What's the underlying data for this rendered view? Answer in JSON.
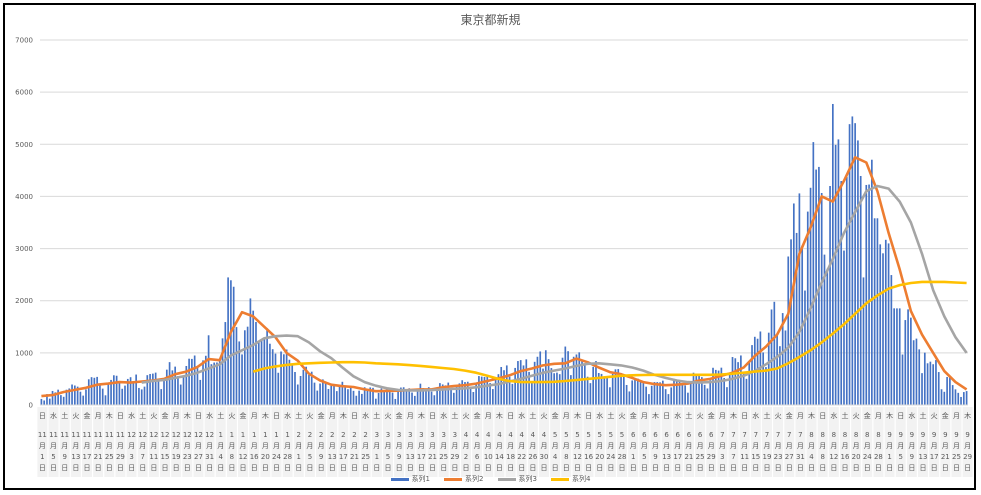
{
  "chart_data": {
    "type": "bar+line",
    "title": "東京都新規",
    "ylim": [
      0,
      7000
    ],
    "yticks": [
      0,
      1000,
      2000,
      3000,
      4000,
      5000,
      6000,
      7000
    ],
    "grid": true,
    "legend_position": "bottom",
    "x_start": "2020-11-01",
    "x_end": "2021-09-29",
    "weekday_cycle": [
      "日",
      "水",
      "土",
      "火",
      "金",
      "月",
      "木"
    ],
    "labels": [
      {
        "m": "11",
        "d": "1"
      },
      {
        "m": "11",
        "d": "5"
      },
      {
        "m": "11",
        "d": "9"
      },
      {
        "m": "11",
        "d": "13"
      },
      {
        "m": "11",
        "d": "17"
      },
      {
        "m": "11",
        "d": "21"
      },
      {
        "m": "11",
        "d": "25"
      },
      {
        "m": "11",
        "d": "29"
      },
      {
        "m": "12",
        "d": "3"
      },
      {
        "m": "12",
        "d": "7"
      },
      {
        "m": "12",
        "d": "11"
      },
      {
        "m": "12",
        "d": "15"
      },
      {
        "m": "12",
        "d": "19"
      },
      {
        "m": "12",
        "d": "23"
      },
      {
        "m": "12",
        "d": "27"
      },
      {
        "m": "12",
        "d": "31"
      },
      {
        "m": "1",
        "d": "4"
      },
      {
        "m": "1",
        "d": "8"
      },
      {
        "m": "1",
        "d": "12"
      },
      {
        "m": "1",
        "d": "16"
      },
      {
        "m": "1",
        "d": "20"
      },
      {
        "m": "1",
        "d": "24"
      },
      {
        "m": "1",
        "d": "28"
      },
      {
        "m": "2",
        "d": "1"
      },
      {
        "m": "2",
        "d": "5"
      },
      {
        "m": "2",
        "d": "9"
      },
      {
        "m": "2",
        "d": "13"
      },
      {
        "m": "2",
        "d": "17"
      },
      {
        "m": "2",
        "d": "21"
      },
      {
        "m": "2",
        "d": "25"
      },
      {
        "m": "3",
        "d": "1"
      },
      {
        "m": "3",
        "d": "5"
      },
      {
        "m": "3",
        "d": "9"
      },
      {
        "m": "3",
        "d": "13"
      },
      {
        "m": "3",
        "d": "17"
      },
      {
        "m": "3",
        "d": "21"
      },
      {
        "m": "3",
        "d": "25"
      },
      {
        "m": "3",
        "d": "29"
      },
      {
        "m": "4",
        "d": "2"
      },
      {
        "m": "4",
        "d": "6"
      },
      {
        "m": "4",
        "d": "10"
      },
      {
        "m": "4",
        "d": "14"
      },
      {
        "m": "4",
        "d": "18"
      },
      {
        "m": "4",
        "d": "22"
      },
      {
        "m": "4",
        "d": "26"
      },
      {
        "m": "4",
        "d": "30"
      },
      {
        "m": "5",
        "d": "4"
      },
      {
        "m": "5",
        "d": "8"
      },
      {
        "m": "5",
        "d": "12"
      },
      {
        "m": "5",
        "d": "16"
      },
      {
        "m": "5",
        "d": "20"
      },
      {
        "m": "5",
        "d": "24"
      },
      {
        "m": "5",
        "d": "28"
      },
      {
        "m": "6",
        "d": "1"
      },
      {
        "m": "6",
        "d": "5"
      },
      {
        "m": "6",
        "d": "9"
      },
      {
        "m": "6",
        "d": "13"
      },
      {
        "m": "6",
        "d": "17"
      },
      {
        "m": "6",
        "d": "21"
      },
      {
        "m": "6",
        "d": "25"
      },
      {
        "m": "6",
        "d": "29"
      },
      {
        "m": "7",
        "d": "3"
      },
      {
        "m": "7",
        "d": "7"
      },
      {
        "m": "7",
        "d": "11"
      },
      {
        "m": "7",
        "d": "15"
      },
      {
        "m": "7",
        "d": "19"
      },
      {
        "m": "7",
        "d": "23"
      },
      {
        "m": "7",
        "d": "27"
      },
      {
        "m": "7",
        "d": "31"
      },
      {
        "m": "8",
        "d": "4"
      },
      {
        "m": "8",
        "d": "8"
      },
      {
        "m": "8",
        "d": "12"
      },
      {
        "m": "8",
        "d": "16"
      },
      {
        "m": "8",
        "d": "20"
      },
      {
        "m": "8",
        "d": "24"
      },
      {
        "m": "8",
        "d": "28"
      },
      {
        "m": "9",
        "d": "1"
      },
      {
        "m": "9",
        "d": "5"
      },
      {
        "m": "9",
        "d": "9"
      },
      {
        "m": "9",
        "d": "13"
      },
      {
        "m": "9",
        "d": "17"
      },
      {
        "m": "9",
        "d": "21"
      },
      {
        "m": "9",
        "d": "25"
      },
      {
        "m": "9",
        "d": "29"
      }
    ],
    "month_suffix": "月",
    "day_suffix": "日",
    "series1": {
      "name": "系列1",
      "type": "bar",
      "color": "#4472c4",
      "resolution": "daily",
      "values": [
        116,
        87,
        209,
        122,
        269,
        242,
        294,
        189,
        157,
        293,
        317,
        393,
        374,
        352,
        255,
        180,
        298,
        493,
        534,
        522,
        539,
        391,
        314,
        186,
        401,
        481,
        570,
        561,
        418,
        311,
        372,
        500,
        533,
        449,
        584,
        327,
        299,
        352,
        572,
        595,
        602,
        621,
        480,
        305,
        460,
        678,
        822,
        664,
        736,
        556,
        392,
        563,
        748,
        888,
        884,
        949,
        708,
        481,
        856,
        944,
        1337,
        783,
        814,
        816,
        884,
        1278,
        1591,
        2447,
        2392,
        2268,
        1494,
        1219,
        970,
        1433,
        1502,
        2044,
        1809,
        1592,
        1204,
        1240,
        1274,
        1471,
        1175,
        1070,
        986,
        618,
        1026,
        973,
        1064,
        868,
        769,
        633,
        393,
        556,
        676,
        734,
        577,
        639,
        429,
        276,
        412,
        491,
        434,
        307,
        369,
        371,
        266,
        378,
        445,
        353,
        303,
        327,
        272,
        178,
        275,
        213,
        340,
        270,
        337,
        329,
        121,
        232,
        316,
        279,
        301,
        293,
        237,
        116,
        290,
        335,
        340,
        304,
        320,
        239,
        175,
        300,
        409,
        323,
        303,
        342,
        256,
        187,
        337,
        420,
        394,
        376,
        430,
        313,
        234,
        364,
        414,
        475,
        440,
        446,
        355,
        249,
        399,
        555,
        545,
        537,
        570,
        421,
        306,
        510,
        591,
        729,
        667,
        759,
        543,
        405,
        711,
        843,
        861,
        759,
        876,
        635,
        425,
        828,
        925,
        1027,
        698,
        1050,
        879,
        708,
        609,
        621,
        591,
        907,
        1121,
        1032,
        573,
        925,
        969,
        1010,
        854,
        772,
        542,
        419,
        732,
        843,
        614,
        596,
        535,
        521,
        340,
        597,
        684,
        689,
        614,
        539,
        384,
        260,
        471,
        487,
        508,
        472,
        436,
        351,
        209,
        369,
        440,
        439,
        435,
        467,
        304,
        209,
        337,
        501,
        452,
        453,
        388,
        376,
        236,
        435,
        619,
        570,
        562,
        534,
        386,
        317,
        476,
        714,
        673,
        660,
        716,
        518,
        342,
        593,
        920,
        896,
        822,
        950,
        614,
        502,
        830,
        1149,
        1308,
        1271,
        1410,
        1008,
        727,
        1387,
        1832,
        1979,
        1359,
        1128,
        1763,
        1429,
        2848,
        3177,
        3865,
        3300,
        4058,
        3058,
        2195,
        3709,
        4166,
        5042,
        4515,
        4566,
        4066,
        2884,
        2612,
        4200,
        5773,
        4989,
        5094,
        4295,
        2962,
        4377,
        5386,
        5534,
        5405,
        5074,
        4392,
        2447,
        4220,
        4228,
        4704,
        3581,
        3581,
        3081,
        2909,
        3168,
        3099,
        2492,
        1854,
        1853,
        1853,
        968,
        1629,
        1834,
        1675,
        1242,
        1273,
        1067,
        611,
        1004,
        800,
        831,
        782,
        862,
        632,
        302,
        253,
        537,
        531,
        382,
        300,
        233,
        154,
        248,
        267
      ]
    },
    "series2": {
      "name": "系列2",
      "type": "line",
      "color": "#ed7d31",
      "resolution": "every 4 days (at labels)",
      "values": [
        170,
        190,
        250,
        290,
        330,
        390,
        410,
        440,
        430,
        450,
        470,
        500,
        590,
        640,
        730,
        880,
        860,
        1400,
        1780,
        1700,
        1500,
        1300,
        1000,
        850,
        600,
        470,
        390,
        360,
        345,
        300,
        265,
        270,
        275,
        285,
        300,
        300,
        340,
        365,
        380,
        410,
        460,
        510,
        570,
        650,
        700,
        760,
        790,
        800,
        890,
        820,
        720,
        630,
        590,
        520,
        440,
        400,
        380,
        390,
        410,
        470,
        500,
        560,
        620,
        720,
        940,
        1120,
        1350,
        1750,
        2900,
        3400,
        4000,
        3900,
        4300,
        4750,
        4650,
        4100,
        3300,
        2600,
        1800,
        1350,
        1000,
        650,
        440,
        300
      ]
    },
    "series3": {
      "name": "系列3",
      "type": "line",
      "color": "#a5a5a5",
      "resolution": "every 4 days (at labels)",
      "values": [
        null,
        null,
        null,
        null,
        null,
        null,
        null,
        null,
        null,
        430,
        460,
        480,
        520,
        560,
        620,
        700,
        780,
        950,
        1050,
        1150,
        1280,
        1320,
        1330,
        1320,
        1200,
        1030,
        900,
        720,
        550,
        440,
        370,
        320,
        290,
        280,
        280,
        285,
        300,
        310,
        320,
        340,
        370,
        400,
        450,
        500,
        560,
        620,
        660,
        700,
        750,
        790,
        800,
        780,
        760,
        720,
        660,
        580,
        520,
        470,
        440,
        430,
        440,
        460,
        500,
        560,
        650,
        780,
        920,
        1100,
        1400,
        1850,
        2350,
        2800,
        3300,
        3700,
        4100,
        4200,
        4150,
        3900,
        3500,
        2900,
        2200,
        1700,
        1300,
        1000
      ]
    },
    "series4": {
      "name": "系列4",
      "type": "line",
      "color": "#ffc000",
      "resolution": "every 4 days (at labels)",
      "values": [
        null,
        null,
        null,
        null,
        null,
        null,
        null,
        null,
        null,
        null,
        null,
        null,
        null,
        null,
        null,
        null,
        null,
        null,
        null,
        640,
        700,
        740,
        770,
        790,
        800,
        810,
        815,
        820,
        820,
        815,
        800,
        790,
        780,
        765,
        750,
        730,
        710,
        690,
        660,
        620,
        560,
        500,
        460,
        440,
        440,
        440,
        445,
        460,
        480,
        500,
        520,
        540,
        560,
        570,
        575,
        580,
        580,
        580,
        580,
        580,
        580,
        585,
        600,
        620,
        640,
        660,
        700,
        800,
        920,
        1050,
        1200,
        1370,
        1550,
        1750,
        1950,
        2100,
        2230,
        2300,
        2340,
        2360,
        2360,
        2360,
        2350,
        2340
      ]
    }
  }
}
